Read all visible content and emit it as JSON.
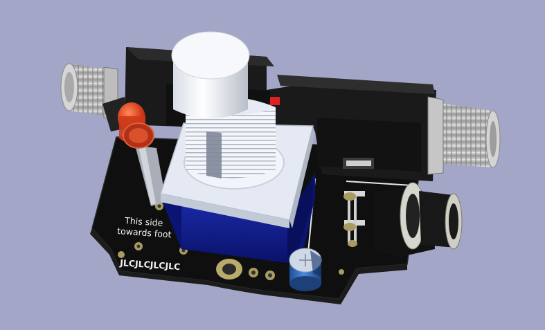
{
  "board": {
    "silkscreen_note_line1": "This side",
    "silkscreen_note_line2": "towards foot",
    "silkscreen_order_mark": "JLCJLCJLCJLC"
  },
  "colors": {
    "background": "#a3a6c6",
    "pcb_soldermask": "#111111",
    "silkscreen": "#f2f2f2",
    "switch_body": "#0d1a8a",
    "switch_top": "#e6ecf7",
    "led": "#d8401d",
    "capacitor": "#2a63b8",
    "connector_metal": "#c9c9c9",
    "connector_housing": "#151515",
    "pad_gold": "#c8b874"
  },
  "icons": [
    "footswitch-3d",
    "led-3d",
    "electrolytic-capacitor-3d",
    "dc-jack-3d",
    "audio-jack-3d"
  ]
}
